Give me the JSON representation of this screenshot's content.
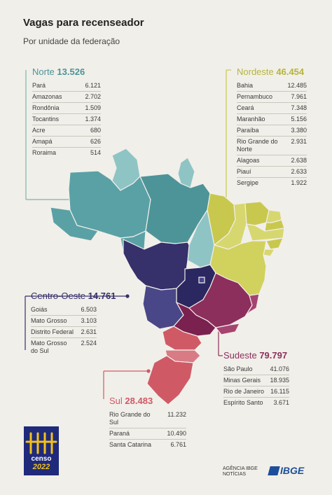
{
  "title": "Vagas para recenseador",
  "subtitle": "Por unidade da federação",
  "colors": {
    "norte": "#5aa1a6",
    "nordeste": "#c8c84e",
    "centro_oeste": "#36306b",
    "sudeste": "#8c2f5c",
    "sul": "#cf5a66",
    "background": "#f1efe9"
  },
  "regions": {
    "norte": {
      "name": "Norte",
      "total": "13.526",
      "states": [
        {
          "name": "Pará",
          "value": "6.121"
        },
        {
          "name": "Amazonas",
          "value": "2.702"
        },
        {
          "name": "Rondônia",
          "value": "1.509"
        },
        {
          "name": "Tocantins",
          "value": "1.374"
        },
        {
          "name": "Acre",
          "value": "680"
        },
        {
          "name": "Amapá",
          "value": "626"
        },
        {
          "name": "Roraima",
          "value": "514"
        }
      ]
    },
    "nordeste": {
      "name": "Nordeste",
      "total": "46.454",
      "states": [
        {
          "name": "Bahia",
          "value": "12.485"
        },
        {
          "name": "Pernambuco",
          "value": "7.961"
        },
        {
          "name": "Ceará",
          "value": "7.348"
        },
        {
          "name": "Maranhão",
          "value": "5.156"
        },
        {
          "name": "Paraíba",
          "value": "3.380"
        },
        {
          "name": "Rio Grande do Norte",
          "value": "2.931"
        },
        {
          "name": "Alagoas",
          "value": "2.638"
        },
        {
          "name": "Piauí",
          "value": "2.633"
        },
        {
          "name": "Sergipe",
          "value": "1.922"
        }
      ]
    },
    "centro_oeste": {
      "name": "Centro-Oeste",
      "total": "14.761",
      "states": [
        {
          "name": "Goiás",
          "value": "6.503"
        },
        {
          "name": "Mato Grosso",
          "value": "3.103"
        },
        {
          "name": "Distrito Federal",
          "value": "2.631"
        },
        {
          "name": "Mato Grosso do Sul",
          "value": "2.524"
        }
      ]
    },
    "sudeste": {
      "name": "Sudeste",
      "total": "79.797",
      "states": [
        {
          "name": "São Paulo",
          "value": "41.076"
        },
        {
          "name": "Minas Gerais",
          "value": "18.935"
        },
        {
          "name": "Rio de Janeiro",
          "value": "16.115"
        },
        {
          "name": "Espírito Santo",
          "value": "3.671"
        }
      ]
    },
    "sul": {
      "name": "Sul",
      "total": "28.483",
      "states": [
        {
          "name": "Rio Grande do Sul",
          "value": "11.232"
        },
        {
          "name": "Paraná",
          "value": "10.490"
        },
        {
          "name": "Santa Catarina",
          "value": "6.761"
        }
      ]
    }
  },
  "logos": {
    "censo_brand": "censo",
    "censo_year": "2022",
    "agencia": "AGÊNCIA IBGE NOTÍCIAS",
    "ibge": "IBGE"
  }
}
